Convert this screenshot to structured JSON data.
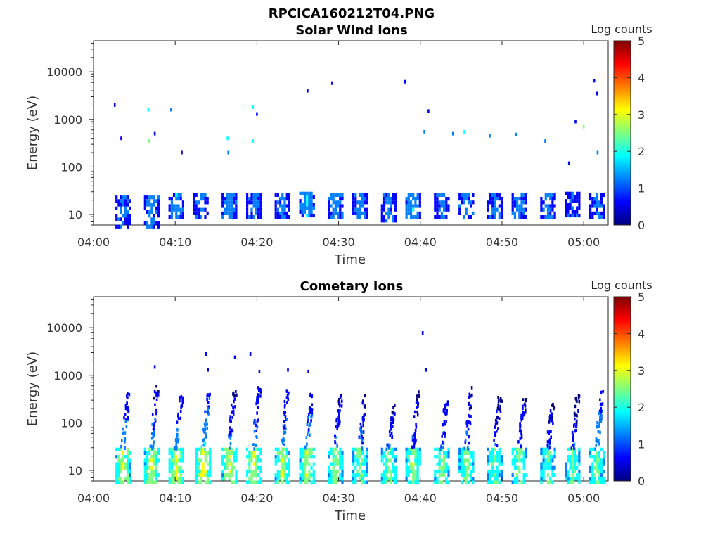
{
  "figure": {
    "title": "RPCICA160212T04.PNG"
  },
  "colors": {
    "colormap": [
      "#00007f",
      "#0000ff",
      "#007fff",
      "#00ffff",
      "#7fff7f",
      "#ffff00",
      "#ff7f00",
      "#ff0000",
      "#7f0000"
    ],
    "axis": "#262626"
  },
  "chart_data": [
    {
      "type": "heatmap",
      "title": "Solar Wind Ions",
      "xlabel": "Time",
      "ylabel": "Energy (eV)",
      "y_scale": "log",
      "xlim": [
        "04:00",
        "05:03"
      ],
      "ylim": [
        6,
        45000
      ],
      "x_ticks": [
        "04:00",
        "04:10",
        "04:20",
        "04:30",
        "04:40",
        "04:50",
        "05:00"
      ],
      "y_ticks": [
        "10",
        "100",
        "1000",
        "10000"
      ],
      "colorbar": {
        "label": "Log counts",
        "range": [
          0,
          5
        ],
        "ticks": [
          "0",
          "1",
          "2",
          "3",
          "4",
          "5"
        ]
      },
      "grid": false,
      "low_energy_bursts": [
        {
          "t": "04:03.5",
          "e_range": [
            6,
            25
          ],
          "peak_log_counts": 1.4
        },
        {
          "t": "04:07.0",
          "e_range": [
            6,
            25
          ],
          "peak_log_counts": 1.5
        },
        {
          "t": "04:10.0",
          "e_range": [
            9,
            28
          ],
          "peak_log_counts": 1.6
        },
        {
          "t": "04:13.0",
          "e_range": [
            9,
            28
          ],
          "peak_log_counts": 1.5
        },
        {
          "t": "04:16.5",
          "e_range": [
            9,
            28
          ],
          "peak_log_counts": 1.6
        },
        {
          "t": "04:19.5",
          "e_range": [
            9,
            28
          ],
          "peak_log_counts": 1.5
        },
        {
          "t": "04:23.0",
          "e_range": [
            9,
            28
          ],
          "peak_log_counts": 1.4
        },
        {
          "t": "04:26.0",
          "e_range": [
            9,
            30
          ],
          "peak_log_counts": 1.7
        },
        {
          "t": "04:29.5",
          "e_range": [
            9,
            28
          ],
          "peak_log_counts": 1.6
        },
        {
          "t": "04:32.5",
          "e_range": [
            9,
            28
          ],
          "peak_log_counts": 1.5
        },
        {
          "t": "04:36.0",
          "e_range": [
            7,
            28
          ],
          "peak_log_counts": 1.5
        },
        {
          "t": "04:39.0",
          "e_range": [
            9,
            28
          ],
          "peak_log_counts": 1.8
        },
        {
          "t": "04:42.5",
          "e_range": [
            9,
            28
          ],
          "peak_log_counts": 1.5
        },
        {
          "t": "04:45.5",
          "e_range": [
            9,
            28
          ],
          "peak_log_counts": 1.5
        },
        {
          "t": "04:49.0",
          "e_range": [
            9,
            28
          ],
          "peak_log_counts": 1.4
        },
        {
          "t": "04:52.0",
          "e_range": [
            9,
            28
          ],
          "peak_log_counts": 1.5
        },
        {
          "t": "04:55.5",
          "e_range": [
            9,
            28
          ],
          "peak_log_counts": 1.4
        },
        {
          "t": "04:58.5",
          "e_range": [
            9,
            30
          ],
          "peak_log_counts": 1.3
        },
        {
          "t": "05:01.5",
          "e_range": [
            9,
            28
          ],
          "peak_log_counts": 1.4
        }
      ],
      "high_energy_events": [
        {
          "t": "04:02.6",
          "e": 2000,
          "log_counts": 0.6
        },
        {
          "t": "04:03.4",
          "e": 400,
          "log_counts": 0.7
        },
        {
          "t": "04:06.7",
          "e": 1600,
          "log_counts": 1.8
        },
        {
          "t": "04:06.8",
          "e": 350,
          "log_counts": 2.8
        },
        {
          "t": "04:07.5",
          "e": 500,
          "log_counts": 0.9
        },
        {
          "t": "04:09.5",
          "e": 1600,
          "log_counts": 1.0
        },
        {
          "t": "04:10.8",
          "e": 200,
          "log_counts": 0.8
        },
        {
          "t": "04:16.4",
          "e": 400,
          "log_counts": 1.9
        },
        {
          "t": "04:16.5",
          "e": 200,
          "log_counts": 1.0
        },
        {
          "t": "04:19.5",
          "e": 1800,
          "log_counts": 1.6
        },
        {
          "t": "04:19.5",
          "e": 350,
          "log_counts": 1.9
        },
        {
          "t": "04:20.0",
          "e": 1300,
          "log_counts": 0.6
        },
        {
          "t": "04:26.2",
          "e": 4000,
          "log_counts": 0.6
        },
        {
          "t": "04:29.2",
          "e": 5800,
          "log_counts": 0.6
        },
        {
          "t": "04:38.1",
          "e": 6200,
          "log_counts": 0.6
        },
        {
          "t": "04:40.5",
          "e": 550,
          "log_counts": 1.3
        },
        {
          "t": "04:41.0",
          "e": 1500,
          "log_counts": 0.9
        },
        {
          "t": "04:44.0",
          "e": 500,
          "log_counts": 1.0
        },
        {
          "t": "04:45.4",
          "e": 550,
          "log_counts": 1.9
        },
        {
          "t": "04:48.5",
          "e": 450,
          "log_counts": 1.1
        },
        {
          "t": "04:51.7",
          "e": 480,
          "log_counts": 1.2
        },
        {
          "t": "04:55.3",
          "e": 350,
          "log_counts": 1.1
        },
        {
          "t": "04:58.2",
          "e": 120,
          "log_counts": 0.8
        },
        {
          "t": "04:59.0",
          "e": 900,
          "log_counts": 0.8
        },
        {
          "t": "05:00.0",
          "e": 700,
          "log_counts": 2.3
        },
        {
          "t": "05:01.3",
          "e": 6500,
          "log_counts": 0.6
        },
        {
          "t": "05:01.6",
          "e": 3500,
          "log_counts": 0.6
        },
        {
          "t": "05:01.7",
          "e": 200,
          "log_counts": 1.5
        }
      ]
    },
    {
      "type": "heatmap",
      "title": "Cometary Ions",
      "xlabel": "Time",
      "ylabel": "Energy (eV)",
      "y_scale": "log",
      "xlim": [
        "04:00",
        "05:03"
      ],
      "ylim": [
        6,
        45000
      ],
      "x_ticks": [
        "04:00",
        "04:10",
        "04:20",
        "04:30",
        "04:40",
        "04:50",
        "05:00"
      ],
      "y_ticks": [
        "10",
        "100",
        "1000",
        "10000"
      ],
      "colorbar": {
        "label": "Log counts",
        "range": [
          0,
          5
        ],
        "ticks": [
          "0",
          "1",
          "2",
          "3",
          "4",
          "5"
        ]
      },
      "grid": false,
      "low_energy_bursts": [
        {
          "t": "04:03.5",
          "e_range": [
            6,
            30
          ],
          "peak_log_counts": 3.0
        },
        {
          "t": "04:07.0",
          "e_range": [
            6,
            30
          ],
          "peak_log_counts": 3.0
        },
        {
          "t": "04:10.0",
          "e_range": [
            6,
            30
          ],
          "peak_log_counts": 3.1
        },
        {
          "t": "04:13.3",
          "e_range": [
            6,
            30
          ],
          "peak_log_counts": 3.3
        },
        {
          "t": "04:16.5",
          "e_range": [
            6,
            30
          ],
          "peak_log_counts": 3.1
        },
        {
          "t": "04:19.5",
          "e_range": [
            6,
            30
          ],
          "peak_log_counts": 3.1
        },
        {
          "t": "04:23.0",
          "e_range": [
            6,
            30
          ],
          "peak_log_counts": 3.0
        },
        {
          "t": "04:26.0",
          "e_range": [
            6,
            30
          ],
          "peak_log_counts": 3.0
        },
        {
          "t": "04:29.5",
          "e_range": [
            6,
            30
          ],
          "peak_log_counts": 2.8
        },
        {
          "t": "04:32.5",
          "e_range": [
            6,
            30
          ],
          "peak_log_counts": 2.7
        },
        {
          "t": "04:36.0",
          "e_range": [
            6,
            30
          ],
          "peak_log_counts": 2.8
        },
        {
          "t": "04:39.0",
          "e_range": [
            6,
            30
          ],
          "peak_log_counts": 2.9
        },
        {
          "t": "04:42.5",
          "e_range": [
            6,
            30
          ],
          "peak_log_counts": 2.8
        },
        {
          "t": "04:45.5",
          "e_range": [
            6,
            30
          ],
          "peak_log_counts": 2.8
        },
        {
          "t": "04:49.0",
          "e_range": [
            6,
            30
          ],
          "peak_log_counts": 2.6
        },
        {
          "t": "04:52.0",
          "e_range": [
            6,
            30
          ],
          "peak_log_counts": 2.7
        },
        {
          "t": "04:55.5",
          "e_range": [
            6,
            30
          ],
          "peak_log_counts": 2.6
        },
        {
          "t": "04:58.5",
          "e_range": [
            6,
            30
          ],
          "peak_log_counts": 2.6
        },
        {
          "t": "05:01.5",
          "e_range": [
            6,
            30
          ],
          "peak_log_counts": 2.6
        }
      ],
      "dispersion_tails": [
        {
          "t": "04:03.5",
          "e_top": 450,
          "peak_log_counts": 1.6
        },
        {
          "t": "04:07.0",
          "e_top": 700,
          "peak_log_counts": 1.4
        },
        {
          "t": "04:10.0",
          "e_top": 400,
          "peak_log_counts": 1.5
        },
        {
          "t": "04:13.3",
          "e_top": 450,
          "peak_log_counts": 1.8
        },
        {
          "t": "04:16.5",
          "e_top": 500,
          "peak_log_counts": 1.4
        },
        {
          "t": "04:19.5",
          "e_top": 600,
          "peak_log_counts": 1.5
        },
        {
          "t": "04:23.0",
          "e_top": 600,
          "peak_log_counts": 1.5
        },
        {
          "t": "04:26.0",
          "e_top": 550,
          "peak_log_counts": 1.6
        },
        {
          "t": "04:29.5",
          "e_top": 400,
          "peak_log_counts": 1.3
        },
        {
          "t": "04:32.5",
          "e_top": 450,
          "peak_log_counts": 1.3
        },
        {
          "t": "04:36.0",
          "e_top": 250,
          "peak_log_counts": 1.2
        },
        {
          "t": "04:39.0",
          "e_top": 500,
          "peak_log_counts": 1.2
        },
        {
          "t": "04:42.5",
          "e_top": 450,
          "peak_log_counts": 1.3
        },
        {
          "t": "04:45.5",
          "e_top": 600,
          "peak_log_counts": 1.3
        },
        {
          "t": "04:49.0",
          "e_top": 400,
          "peak_log_counts": 1.1
        },
        {
          "t": "04:52.0",
          "e_top": 350,
          "peak_log_counts": 1.2
        },
        {
          "t": "04:55.5",
          "e_top": 300,
          "peak_log_counts": 1.1
        },
        {
          "t": "04:58.5",
          "e_top": 400,
          "peak_log_counts": 1.1
        },
        {
          "t": "05:01.5",
          "e_top": 500,
          "peak_log_counts": 1.6
        }
      ],
      "high_energy_events": [
        {
          "t": "04:07.5",
          "e": 1500,
          "log_counts": 0.6
        },
        {
          "t": "04:13.8",
          "e": 2800,
          "log_counts": 0.6
        },
        {
          "t": "04:14.0",
          "e": 1300,
          "log_counts": 0.7
        },
        {
          "t": "04:17.3",
          "e": 2400,
          "log_counts": 0.6
        },
        {
          "t": "04:19.2",
          "e": 2800,
          "log_counts": 0.6
        },
        {
          "t": "04:20.3",
          "e": 1200,
          "log_counts": 0.7
        },
        {
          "t": "04:23.8",
          "e": 1300,
          "log_counts": 0.6
        },
        {
          "t": "04:26.3",
          "e": 1200,
          "log_counts": 0.6
        },
        {
          "t": "04:40.3",
          "e": 7800,
          "log_counts": 0.6
        },
        {
          "t": "04:40.7",
          "e": 1300,
          "log_counts": 0.6
        }
      ]
    }
  ]
}
